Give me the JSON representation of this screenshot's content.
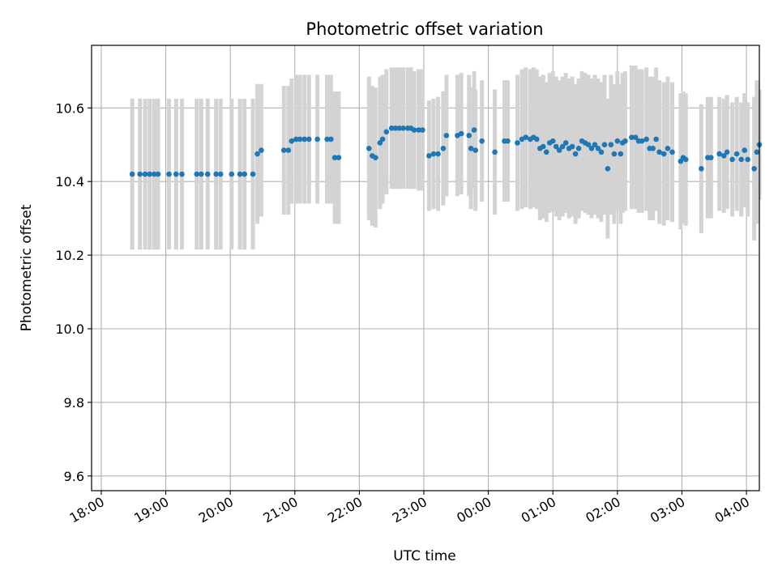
{
  "chart_data": {
    "type": "scatter",
    "title": "Photometric offset variation",
    "xlabel": "UTC time",
    "ylabel": "Photometric offset",
    "x_unit": "hours since 18:00 UTC",
    "xlim": [
      -0.15,
      10.2
    ],
    "ylim": [
      9.56,
      10.77
    ],
    "grid": true,
    "xticks": [
      0,
      1,
      2,
      3,
      4,
      5,
      6,
      7,
      8,
      9,
      10
    ],
    "xtick_labels": [
      "18:00",
      "19:00",
      "20:00",
      "21:00",
      "22:00",
      "23:00",
      "00:00",
      "01:00",
      "02:00",
      "03:00",
      "04:00"
    ],
    "yticks": [
      9.6,
      9.8,
      10.0,
      10.2,
      10.4,
      10.6
    ],
    "ytick_labels": [
      "9.6",
      "9.8",
      "10.0",
      "10.2",
      "10.4",
      "10.6"
    ],
    "colors": {
      "points": "#1f77b4",
      "errorbars": "#d3d3d3",
      "grid": "#b0b0b0",
      "axes": "#000000"
    },
    "series": [
      {
        "name": "offset",
        "points": [
          {
            "x": 0.48,
            "y": 10.42,
            "yerr": 0.205
          },
          {
            "x": 0.6,
            "y": 10.42,
            "yerr": 0.205
          },
          {
            "x": 0.68,
            "y": 10.42,
            "yerr": 0.205
          },
          {
            "x": 0.75,
            "y": 10.42,
            "yerr": 0.205
          },
          {
            "x": 0.82,
            "y": 10.42,
            "yerr": 0.205
          },
          {
            "x": 0.88,
            "y": 10.42,
            "yerr": 0.205
          },
          {
            "x": 1.05,
            "y": 10.42,
            "yerr": 0.205
          },
          {
            "x": 1.16,
            "y": 10.42,
            "yerr": 0.205
          },
          {
            "x": 1.25,
            "y": 10.42,
            "yerr": 0.205
          },
          {
            "x": 1.48,
            "y": 10.42,
            "yerr": 0.205
          },
          {
            "x": 1.55,
            "y": 10.42,
            "yerr": 0.205
          },
          {
            "x": 1.65,
            "y": 10.42,
            "yerr": 0.205
          },
          {
            "x": 1.78,
            "y": 10.42,
            "yerr": 0.205
          },
          {
            "x": 1.85,
            "y": 10.42,
            "yerr": 0.205
          },
          {
            "x": 2.02,
            "y": 10.42,
            "yerr": 0.205
          },
          {
            "x": 2.15,
            "y": 10.42,
            "yerr": 0.205
          },
          {
            "x": 2.22,
            "y": 10.42,
            "yerr": 0.205
          },
          {
            "x": 2.35,
            "y": 10.42,
            "yerr": 0.205
          },
          {
            "x": 2.42,
            "y": 10.475,
            "yerr": 0.19
          },
          {
            "x": 2.48,
            "y": 10.485,
            "yerr": 0.18
          },
          {
            "x": 2.83,
            "y": 10.485,
            "yerr": 0.175
          },
          {
            "x": 2.9,
            "y": 10.485,
            "yerr": 0.175
          },
          {
            "x": 2.95,
            "y": 10.51,
            "yerr": 0.17
          },
          {
            "x": 3.02,
            "y": 10.515,
            "yerr": 0.175
          },
          {
            "x": 3.08,
            "y": 10.515,
            "yerr": 0.175
          },
          {
            "x": 3.15,
            "y": 10.515,
            "yerr": 0.175
          },
          {
            "x": 3.22,
            "y": 10.515,
            "yerr": 0.175
          },
          {
            "x": 3.35,
            "y": 10.515,
            "yerr": 0.175
          },
          {
            "x": 3.5,
            "y": 10.515,
            "yerr": 0.175
          },
          {
            "x": 3.56,
            "y": 10.515,
            "yerr": 0.175
          },
          {
            "x": 3.62,
            "y": 10.465,
            "yerr": 0.18
          },
          {
            "x": 3.68,
            "y": 10.465,
            "yerr": 0.18
          },
          {
            "x": 4.15,
            "y": 10.49,
            "yerr": 0.195
          },
          {
            "x": 4.2,
            "y": 10.47,
            "yerr": 0.19
          },
          {
            "x": 4.25,
            "y": 10.465,
            "yerr": 0.19
          },
          {
            "x": 4.32,
            "y": 10.505,
            "yerr": 0.18
          },
          {
            "x": 4.36,
            "y": 10.515,
            "yerr": 0.175
          },
          {
            "x": 4.42,
            "y": 10.535,
            "yerr": 0.17
          },
          {
            "x": 4.5,
            "y": 10.545,
            "yerr": 0.165
          },
          {
            "x": 4.56,
            "y": 10.545,
            "yerr": 0.165
          },
          {
            "x": 4.62,
            "y": 10.545,
            "yerr": 0.165
          },
          {
            "x": 4.68,
            "y": 10.545,
            "yerr": 0.165
          },
          {
            "x": 4.75,
            "y": 10.545,
            "yerr": 0.165
          },
          {
            "x": 4.8,
            "y": 10.545,
            "yerr": 0.165
          },
          {
            "x": 4.85,
            "y": 10.54,
            "yerr": 0.16
          },
          {
            "x": 4.92,
            "y": 10.54,
            "yerr": 0.165
          },
          {
            "x": 4.98,
            "y": 10.54,
            "yerr": 0.165
          },
          {
            "x": 5.08,
            "y": 10.47,
            "yerr": 0.15
          },
          {
            "x": 5.15,
            "y": 10.475,
            "yerr": 0.15
          },
          {
            "x": 5.22,
            "y": 10.475,
            "yerr": 0.155
          },
          {
            "x": 5.3,
            "y": 10.49,
            "yerr": 0.155
          },
          {
            "x": 5.35,
            "y": 10.525,
            "yerr": 0.165
          },
          {
            "x": 5.52,
            "y": 10.525,
            "yerr": 0.165
          },
          {
            "x": 5.58,
            "y": 10.53,
            "yerr": 0.165
          },
          {
            "x": 5.7,
            "y": 10.525,
            "yerr": 0.165
          },
          {
            "x": 5.73,
            "y": 10.49,
            "yerr": 0.165
          },
          {
            "x": 5.78,
            "y": 10.54,
            "yerr": 0.16
          },
          {
            "x": 5.8,
            "y": 10.485,
            "yerr": 0.165
          },
          {
            "x": 5.9,
            "y": 10.51,
            "yerr": 0.165
          },
          {
            "x": 6.1,
            "y": 10.48,
            "yerr": 0.17
          },
          {
            "x": 6.25,
            "y": 10.51,
            "yerr": 0.165
          },
          {
            "x": 6.3,
            "y": 10.51,
            "yerr": 0.165
          },
          {
            "x": 6.45,
            "y": 10.505,
            "yerr": 0.185
          },
          {
            "x": 6.52,
            "y": 10.515,
            "yerr": 0.19
          },
          {
            "x": 6.58,
            "y": 10.52,
            "yerr": 0.19
          },
          {
            "x": 6.65,
            "y": 10.515,
            "yerr": 0.19
          },
          {
            "x": 6.7,
            "y": 10.52,
            "yerr": 0.19
          },
          {
            "x": 6.75,
            "y": 10.515,
            "yerr": 0.19
          },
          {
            "x": 6.8,
            "y": 10.49,
            "yerr": 0.195
          },
          {
            "x": 6.85,
            "y": 10.495,
            "yerr": 0.195
          },
          {
            "x": 6.9,
            "y": 10.48,
            "yerr": 0.19
          },
          {
            "x": 6.95,
            "y": 10.505,
            "yerr": 0.19
          },
          {
            "x": 7.0,
            "y": 10.51,
            "yerr": 0.19
          },
          {
            "x": 7.05,
            "y": 10.495,
            "yerr": 0.19
          },
          {
            "x": 7.1,
            "y": 10.485,
            "yerr": 0.19
          },
          {
            "x": 7.15,
            "y": 10.495,
            "yerr": 0.19
          },
          {
            "x": 7.2,
            "y": 10.505,
            "yerr": 0.19
          },
          {
            "x": 7.25,
            "y": 10.49,
            "yerr": 0.19
          },
          {
            "x": 7.3,
            "y": 10.495,
            "yerr": 0.19
          },
          {
            "x": 7.35,
            "y": 10.475,
            "yerr": 0.19
          },
          {
            "x": 7.4,
            "y": 10.49,
            "yerr": 0.19
          },
          {
            "x": 7.45,
            "y": 10.51,
            "yerr": 0.19
          },
          {
            "x": 7.5,
            "y": 10.505,
            "yerr": 0.19
          },
          {
            "x": 7.55,
            "y": 10.5,
            "yerr": 0.19
          },
          {
            "x": 7.6,
            "y": 10.49,
            "yerr": 0.19
          },
          {
            "x": 7.65,
            "y": 10.5,
            "yerr": 0.19
          },
          {
            "x": 7.7,
            "y": 10.49,
            "yerr": 0.19
          },
          {
            "x": 7.75,
            "y": 10.48,
            "yerr": 0.19
          },
          {
            "x": 7.8,
            "y": 10.5,
            "yerr": 0.19
          },
          {
            "x": 7.85,
            "y": 10.435,
            "yerr": 0.19
          },
          {
            "x": 7.9,
            "y": 10.5,
            "yerr": 0.19
          },
          {
            "x": 7.95,
            "y": 10.475,
            "yerr": 0.19
          },
          {
            "x": 8.0,
            "y": 10.51,
            "yerr": 0.19
          },
          {
            "x": 8.05,
            "y": 10.475,
            "yerr": 0.19
          },
          {
            "x": 8.08,
            "y": 10.505,
            "yerr": 0.19
          },
          {
            "x": 8.12,
            "y": 10.51,
            "yerr": 0.19
          },
          {
            "x": 8.22,
            "y": 10.52,
            "yerr": 0.195
          },
          {
            "x": 8.28,
            "y": 10.52,
            "yerr": 0.195
          },
          {
            "x": 8.33,
            "y": 10.51,
            "yerr": 0.195
          },
          {
            "x": 8.38,
            "y": 10.51,
            "yerr": 0.195
          },
          {
            "x": 8.45,
            "y": 10.515,
            "yerr": 0.195
          },
          {
            "x": 8.5,
            "y": 10.49,
            "yerr": 0.195
          },
          {
            "x": 8.55,
            "y": 10.49,
            "yerr": 0.195
          },
          {
            "x": 8.6,
            "y": 10.515,
            "yerr": 0.195
          },
          {
            "x": 8.65,
            "y": 10.48,
            "yerr": 0.195
          },
          {
            "x": 8.72,
            "y": 10.475,
            "yerr": 0.195
          },
          {
            "x": 8.78,
            "y": 10.49,
            "yerr": 0.195
          },
          {
            "x": 8.85,
            "y": 10.48,
            "yerr": 0.19
          },
          {
            "x": 8.98,
            "y": 10.455,
            "yerr": 0.185
          },
          {
            "x": 9.02,
            "y": 10.465,
            "yerr": 0.18
          },
          {
            "x": 9.06,
            "y": 10.46,
            "yerr": 0.18
          },
          {
            "x": 9.3,
            "y": 10.435,
            "yerr": 0.175
          },
          {
            "x": 9.4,
            "y": 10.465,
            "yerr": 0.165
          },
          {
            "x": 9.45,
            "y": 10.465,
            "yerr": 0.165
          },
          {
            "x": 9.58,
            "y": 10.475,
            "yerr": 0.155
          },
          {
            "x": 9.65,
            "y": 10.47,
            "yerr": 0.155
          },
          {
            "x": 9.7,
            "y": 10.48,
            "yerr": 0.155
          },
          {
            "x": 9.78,
            "y": 10.46,
            "yerr": 0.155
          },
          {
            "x": 9.85,
            "y": 10.475,
            "yerr": 0.155
          },
          {
            "x": 9.92,
            "y": 10.46,
            "yerr": 0.155
          },
          {
            "x": 9.97,
            "y": 10.485,
            "yerr": 0.155
          },
          {
            "x": 10.02,
            "y": 10.46,
            "yerr": 0.155
          },
          {
            "x": 10.12,
            "y": 10.435,
            "yerr": 0.195
          },
          {
            "x": 10.16,
            "y": 10.48,
            "yerr": 0.195
          },
          {
            "x": 10.2,
            "y": 10.5,
            "yerr": 0.15
          }
        ]
      }
    ]
  }
}
